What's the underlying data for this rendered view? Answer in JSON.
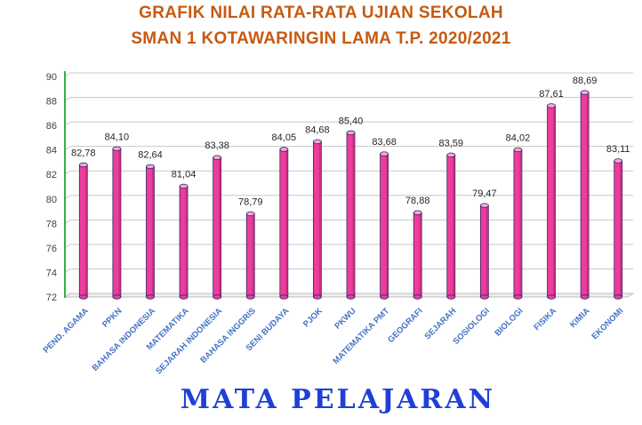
{
  "chart_data": {
    "type": "bar",
    "title": "GRAFIK NILAI RATA-RATA UJIAN SEKOLAH",
    "subtitle": "SMAN 1 KOTAWARINGIN LAMA T.P. 2020/2021",
    "xlabel": "MATA PELAJARAN",
    "ylabel": "",
    "ylim": [
      72,
      90
    ],
    "yticks": [
      "72",
      "74",
      "76",
      "78",
      "80",
      "82",
      "84",
      "86",
      "88",
      "90"
    ],
    "grid": true,
    "categories": [
      "PEND. AGAMA",
      "PPKN",
      "BAHASA INDONESIA",
      "MATEMATIKA",
      "SEJARAH INDONESIA",
      "BAHASA INGGRIS",
      "SENI BUDAYA",
      "PJOK",
      "PKWU",
      "MATEMATIKA PMT",
      "GEOGRAFI",
      "SEJARAH",
      "SOSIOLOGI",
      "BIOLOGI",
      "FISIKA",
      "KIMIA",
      "EKONOMI"
    ],
    "values": [
      82.78,
      84.1,
      82.64,
      81.04,
      83.38,
      78.79,
      84.05,
      84.68,
      85.4,
      83.68,
      78.88,
      83.59,
      79.47,
      84.02,
      87.61,
      88.69,
      83.11
    ],
    "value_labels": [
      "82,78",
      "84,10",
      "82,64",
      "81,04",
      "83,38",
      "78,79",
      "84,05",
      "84,68",
      "85,40",
      "83,68",
      "78,88",
      "83,59",
      "79,47",
      "84,02",
      "87,61",
      "88,69",
      "83,11"
    ],
    "colors": {
      "bar": "#ee3c9c",
      "bar_top": "#f9a6d3",
      "bar_edge": "#2a2a6a",
      "category_label": "#4472c4",
      "title": "#c65a11",
      "xlabel": "#1f3fd6",
      "axis_left": "#2fb34a"
    }
  }
}
